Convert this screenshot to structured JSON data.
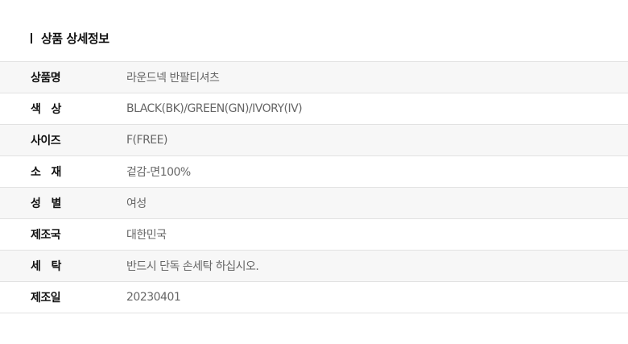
{
  "section_title": "상품 상세정보",
  "rows": [
    {
      "label": "상품명",
      "value": "라운드넥 반팔티셔츠"
    },
    {
      "label": "색   상",
      "value": "BLACK(BK)/GREEN(GN)/IVORY(IV)"
    },
    {
      "label": "사이즈",
      "value": "F(FREE)"
    },
    {
      "label": "소   재",
      "value": "겉감-면100%"
    },
    {
      "label": "성   별",
      "value": "여성"
    },
    {
      "label": "제조국",
      "value": "대한민국"
    },
    {
      "label": "세   탁",
      "value": "반드시 단독 손세탁 하십시오."
    },
    {
      "label": "제조일",
      "value": "20230401"
    }
  ]
}
